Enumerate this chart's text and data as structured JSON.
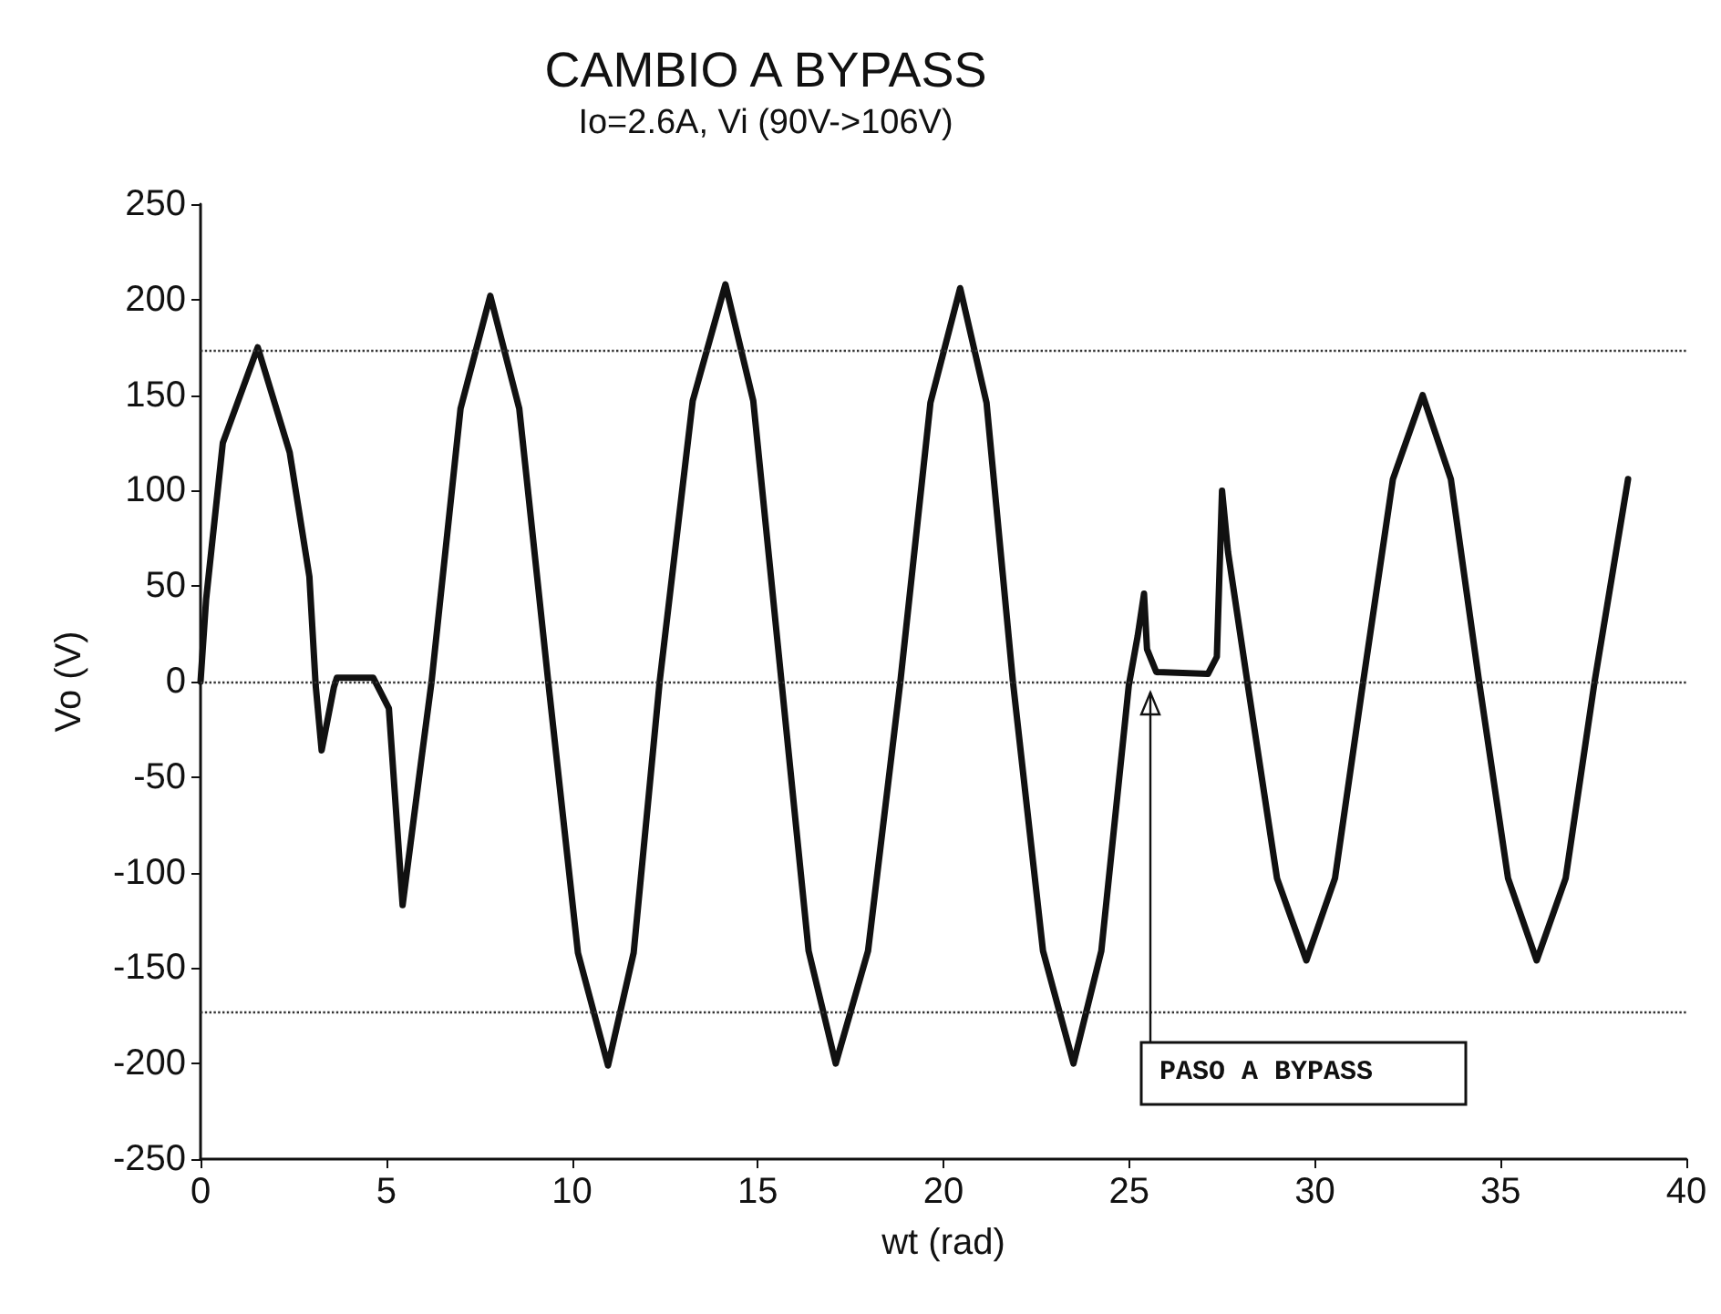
{
  "chart_data": {
    "type": "line",
    "title": "CAMBIO A BYPASS",
    "subtitle": "Io=2.6A, Vi (90V->106V)",
    "xlabel": "wt (rad)",
    "ylabel": "Vo (V)",
    "xlim": [
      0,
      40
    ],
    "xticks": [
      0,
      5,
      10,
      15,
      20,
      25,
      30,
      35,
      40
    ],
    "ylim": [
      -250,
      250
    ],
    "yticks": [
      -250,
      -200,
      -150,
      -100,
      -50,
      0,
      50,
      100,
      150,
      200,
      250
    ],
    "grid": false,
    "marker": "none",
    "line_style": "solid",
    "series": [
      {
        "color": "#111111",
        "x": [
          0,
          0.15,
          0.6,
          1.54,
          2.4,
          2.93,
          3.1,
          3.26,
          3.59,
          3.67,
          4.65,
          5.07,
          5.44,
          5.95,
          6.22,
          7.0,
          7.8,
          8.58,
          9.36,
          10.16,
          10.97,
          11.66,
          12.36,
          13.25,
          14.13,
          14.88,
          15.64,
          16.37,
          17.1,
          17.97,
          18.84,
          19.65,
          20.45,
          21.16,
          21.87,
          22.68,
          23.5,
          24.25,
          24.99,
          25.23,
          25.4,
          25.48,
          25.73,
          27.12,
          27.36,
          27.5,
          27.66,
          28.18,
          28.98,
          29.77,
          30.54,
          31.3,
          32.1,
          32.9,
          33.66,
          34.42,
          35.2,
          35.97,
          36.75,
          37.53,
          38.43
        ],
        "values": [
          0,
          43,
          125,
          175,
          120,
          55,
          -2,
          -36,
          -3,
          2,
          2,
          -14,
          -117,
          -40,
          0,
          143,
          202,
          143,
          0,
          -142,
          -201,
          -142,
          0,
          147,
          208,
          147,
          0,
          -141,
          -200,
          -141,
          0,
          146,
          206,
          146,
          0,
          -141,
          -200,
          -141,
          -2,
          24,
          46,
          17,
          5,
          4,
          13,
          100,
          68,
          0,
          -103,
          -146,
          -103,
          0,
          106,
          150,
          106,
          0,
          -103,
          -146,
          -103,
          0,
          106
        ]
      }
    ],
    "ref_lines": [
      {
        "axis": "y",
        "value": 173,
        "color": "#333333",
        "line_style": "dotted"
      },
      {
        "axis": "y",
        "value": 0,
        "color": "#333333",
        "line_style": "dotted"
      },
      {
        "axis": "y",
        "value": -173,
        "color": "#333333",
        "line_style": "dotted"
      }
    ],
    "annotations": [
      "PASO A BYPASS"
    ]
  }
}
